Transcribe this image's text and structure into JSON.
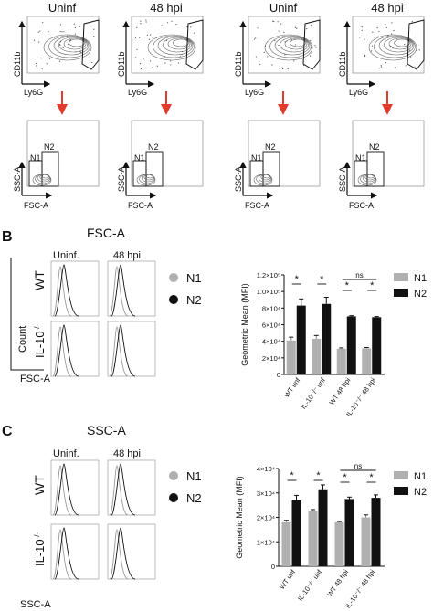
{
  "panelA": {
    "groups": [
      {
        "top_title": "Uninf",
        "cd": "CD11b",
        "ly": "Ly6G",
        "ssc": "SSC-A",
        "fsc": "FSC-A",
        "n1": "N1",
        "n2": "N2"
      },
      {
        "top_title": "48 hpi",
        "cd": "CD11b",
        "ly": "Ly6G",
        "ssc": "SSC-A",
        "fsc": "FSC-A",
        "n1": "N1",
        "n2": "N2"
      },
      {
        "top_title": "Uninf",
        "cd": "CD11b",
        "ly": "Ly6G",
        "ssc": "SSC-A",
        "fsc": "FSC-A",
        "n1": "N1",
        "n2": "N2"
      },
      {
        "top_title": "48 hpi",
        "cd": "CD11b",
        "ly": "Ly6G",
        "ssc": "SSC-A",
        "fsc": "FSC-A",
        "n1": "N1",
        "n2": "N2"
      }
    ]
  },
  "panelB": {
    "letter": "B",
    "title": "FSC-A",
    "col_uninf": "Uninf.",
    "col_48": "48 hpi",
    "row_wt": "WT",
    "row_il10": "IL-10",
    "row_il10_sup": "-/-",
    "ylabel_left": "Count",
    "xlabel_left": "FSC-A",
    "legend": [
      {
        "label": "N1",
        "color": "#b0b0b0"
      },
      {
        "label": "N2",
        "color": "#111111"
      }
    ]
  },
  "panelC": {
    "letter": "C",
    "title": "SSC-A",
    "col_uninf": "Uninf.",
    "col_48": "48 hpi",
    "row_wt": "WT",
    "row_il10": "IL-10",
    "row_il10_sup": "-/-",
    "xlabel_left": "SSC-A",
    "legend": [
      {
        "label": "N1",
        "color": "#b0b0b0"
      },
      {
        "label": "N2",
        "color": "#111111"
      }
    ]
  },
  "chart_data": [
    {
      "type": "bar",
      "ylabel": "Geometric Mean (MFI)",
      "categories": [
        "WT unf",
        "IL-10-/- unf",
        "WT 48 hpi",
        "IL-10-/- 48 hpi"
      ],
      "ylim": [
        0,
        120000
      ],
      "yticks": [
        "0",
        "2×10⁴",
        "4×10⁴",
        "6×10⁴",
        "8×10⁴",
        "1.0×10⁵",
        "1.2×10⁵"
      ],
      "series": [
        {
          "name": "N1",
          "values": [
            41000,
            43000,
            31000,
            31500
          ],
          "errors": [
            4000,
            4000,
            1000,
            1000
          ],
          "color": "#b0b0b0"
        },
        {
          "name": "N2",
          "values": [
            83000,
            85000,
            70000,
            69000
          ],
          "errors": [
            8000,
            8000,
            800,
            800
          ],
          "color": "#111111"
        }
      ],
      "annotations": [
        "*",
        "*",
        "*",
        "*",
        "ns"
      ]
    },
    {
      "type": "bar",
      "ylabel": "Geometric Mean (MFI)",
      "categories": [
        "WT unf",
        "IL-10-/- unf",
        "WT 48 hpi",
        "IL-10-/- 48 hpi"
      ],
      "ylim": [
        0,
        40000
      ],
      "yticks": [
        "0",
        "1×10⁴",
        "2×10⁴",
        "3×10⁴",
        "4×10⁴"
      ],
      "series": [
        {
          "name": "N1",
          "values": [
            18000,
            22500,
            18000,
            20000
          ],
          "errors": [
            800,
            700,
            300,
            1000
          ],
          "color": "#b0b0b0"
        },
        {
          "name": "N2",
          "values": [
            27000,
            31500,
            27500,
            28000
          ],
          "errors": [
            2000,
            1800,
            800,
            1200
          ],
          "color": "#111111"
        }
      ],
      "annotations": [
        "*",
        "*",
        "*",
        "*",
        "ns"
      ]
    }
  ]
}
